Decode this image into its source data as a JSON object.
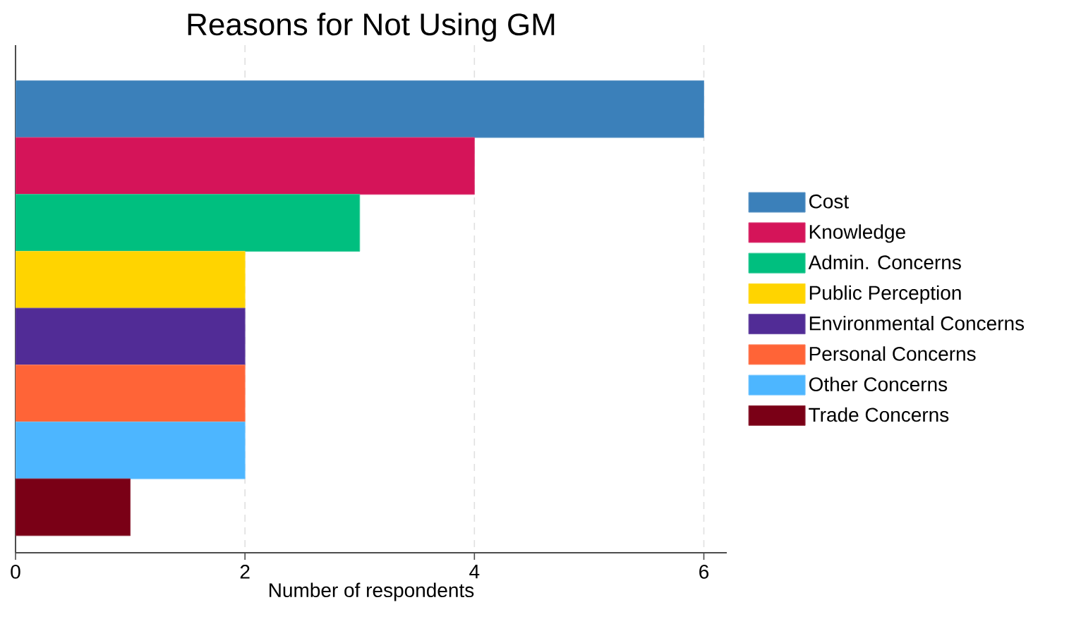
{
  "chart_data": {
    "type": "bar",
    "orientation": "horizontal",
    "title": "Reasons for Not Using GM",
    "xlabel": "Number of respondents",
    "categories": [
      null,
      null,
      null,
      null,
      null,
      null,
      null,
      null
    ],
    "series": [
      {
        "name": "Cost",
        "color": "#3b80ba",
        "values": [
          6,
          null,
          null,
          null,
          null,
          null,
          null,
          null
        ]
      },
      {
        "name": "Knowledge",
        "color": "#d51459",
        "values": [
          null,
          4,
          null,
          null,
          null,
          null,
          null,
          null
        ]
      },
      {
        "name": "Admin. Concerns",
        "color": "#00bf7f",
        "values": [
          null,
          null,
          3,
          null,
          null,
          null,
          null,
          null
        ]
      },
      {
        "name": "Public Perception",
        "color": "#ffd400",
        "values": [
          null,
          null,
          null,
          2,
          null,
          null,
          null,
          null
        ]
      },
      {
        "name": "Environmental Concerns",
        "color": "#512c96",
        "values": [
          null,
          null,
          null,
          null,
          2,
          null,
          null,
          null
        ]
      },
      {
        "name": "Personal Concerns",
        "color": "#ff6437",
        "values": [
          null,
          null,
          null,
          null,
          null,
          2,
          null,
          null
        ]
      },
      {
        "name": "Other Concerns",
        "color": "#4db6ff",
        "values": [
          null,
          null,
          null,
          null,
          null,
          null,
          2,
          null
        ]
      },
      {
        "name": "Trade Concerns",
        "color": "#7a0016",
        "values": [
          null,
          null,
          null,
          null,
          null,
          null,
          null,
          1
        ]
      }
    ],
    "xlim": [
      0,
      6.2
    ],
    "xticks": [
      0,
      2,
      4,
      6
    ],
    "grid": "x",
    "legend": "right",
    "tick_labels": "x"
  }
}
